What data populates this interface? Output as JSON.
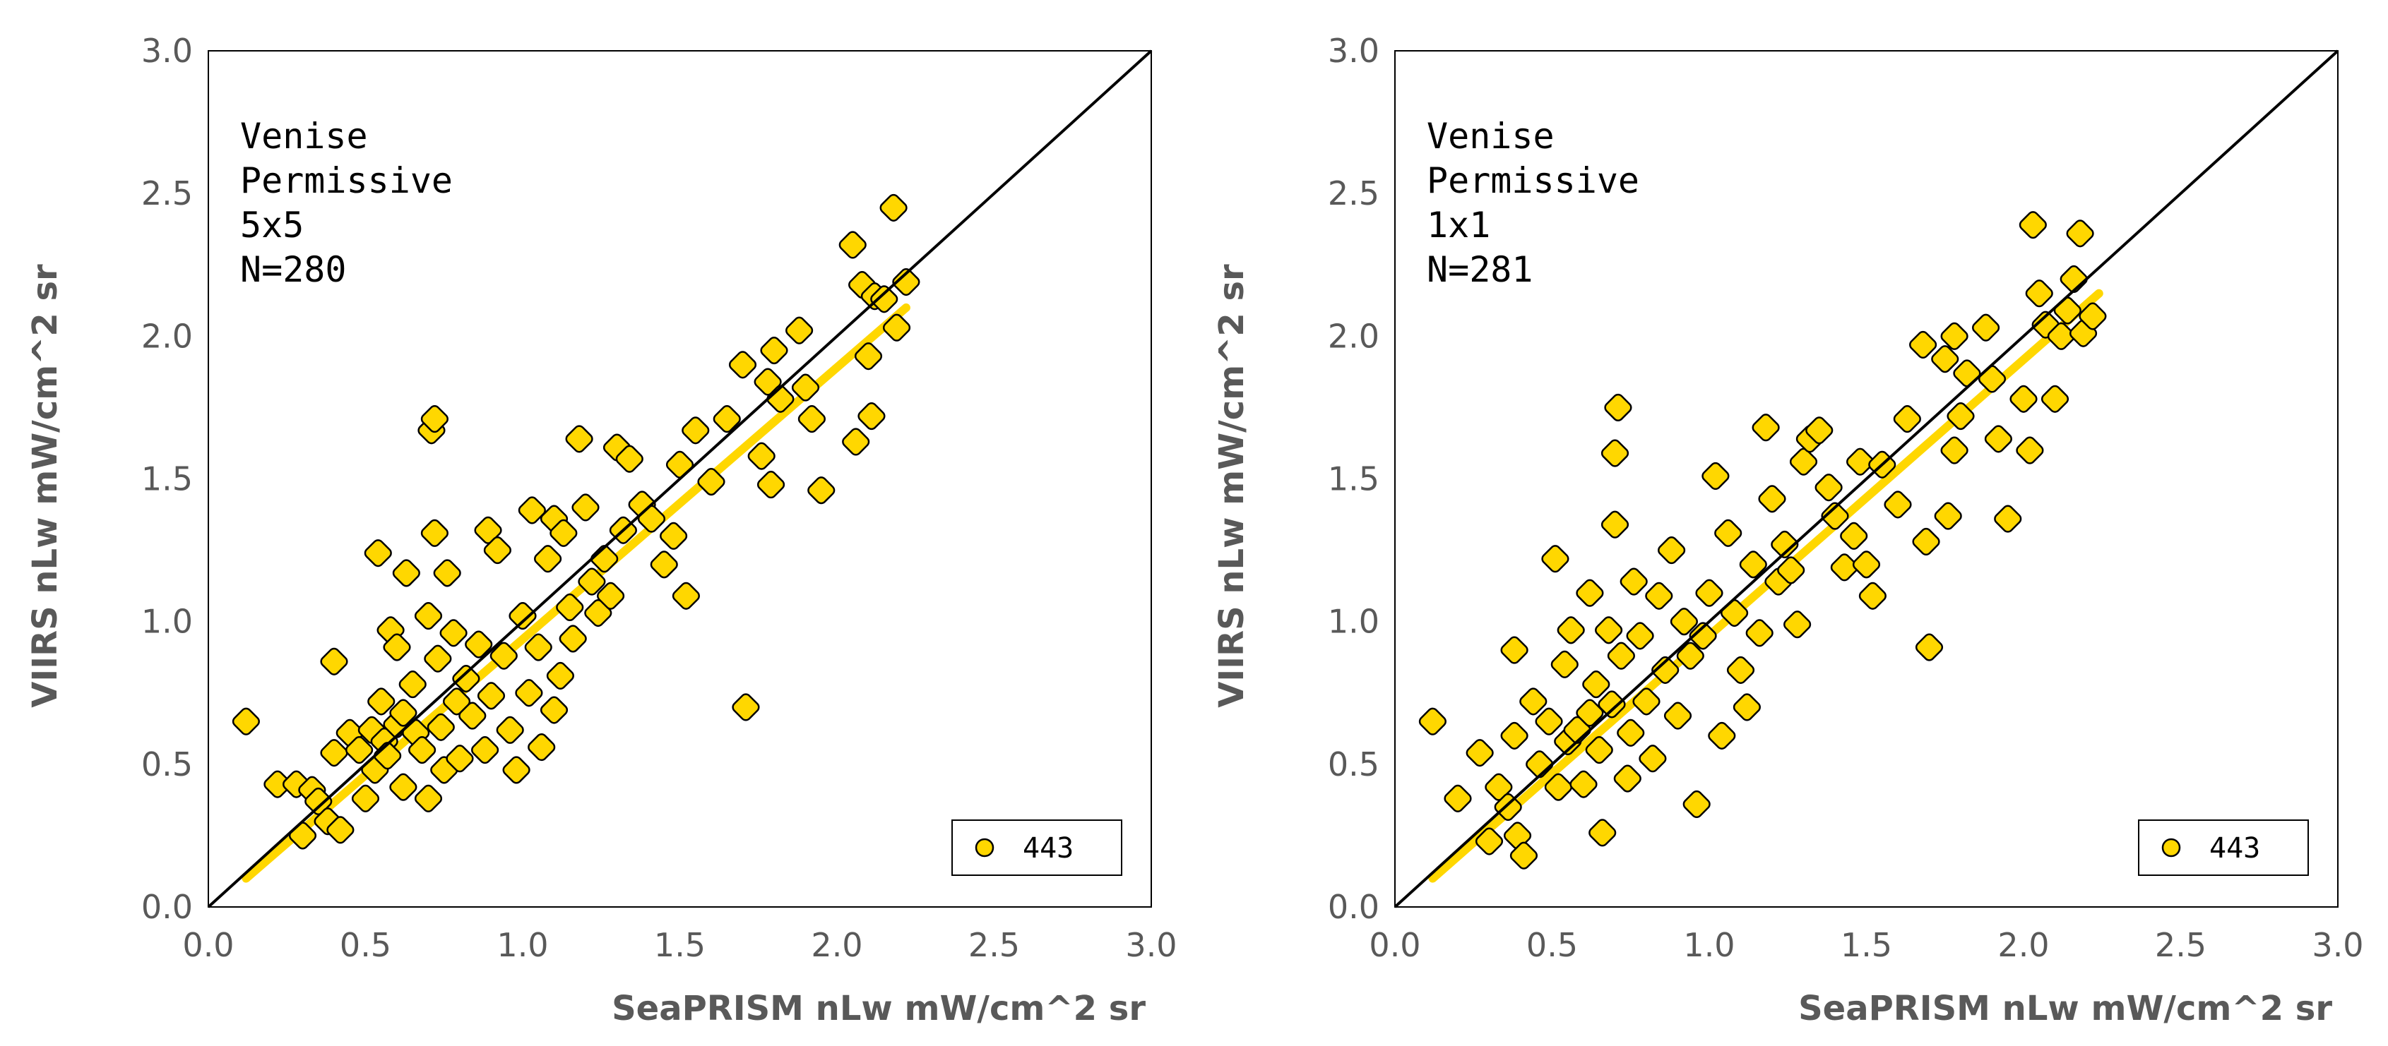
{
  "chart_data": [
    {
      "type": "scatter",
      "title": "",
      "xlabel": "SeaPRISM nLw mW/cm^2 sr",
      "ylabel": "VIIRS nLw mW/cm^2 sr",
      "xlim": [
        0,
        3
      ],
      "ylim": [
        0,
        3
      ],
      "x_ticks": [
        "0.0",
        "0.5",
        "1.0",
        "1.5",
        "2.0",
        "2.5",
        "3.0"
      ],
      "y_ticks": [
        "0.0",
        "0.5",
        "1.0",
        "1.5",
        "2.0",
        "2.5",
        "3.0"
      ],
      "grid": false,
      "legend_position": "bottom-right",
      "annotation": [
        "Venise",
        "Permissive",
        "5x5",
        "N=280"
      ],
      "reference_line": {
        "name": "1:1",
        "x": [
          0,
          3
        ],
        "y": [
          0,
          3
        ],
        "color": "#000000"
      },
      "fit_line": {
        "x": [
          0.12,
          2.22
        ],
        "y": [
          0.1,
          2.1
        ],
        "color": "#ffd700"
      },
      "series": [
        {
          "name": "443",
          "marker_fill": "#ffd700",
          "marker_stroke": "#000000",
          "points": [
            [
              0.12,
              0.65
            ],
            [
              0.22,
              0.43
            ],
            [
              0.28,
              0.43
            ],
            [
              0.33,
              0.41
            ],
            [
              0.3,
              0.25
            ],
            [
              0.35,
              0.37
            ],
            [
              0.38,
              0.3
            ],
            [
              0.4,
              0.86
            ],
            [
              0.4,
              0.54
            ],
            [
              0.42,
              0.27
            ],
            [
              0.45,
              0.61
            ],
            [
              0.48,
              0.55
            ],
            [
              0.5,
              0.38
            ],
            [
              0.52,
              0.62
            ],
            [
              0.53,
              0.48
            ],
            [
              0.54,
              1.24
            ],
            [
              0.55,
              0.72
            ],
            [
              0.56,
              0.58
            ],
            [
              0.57,
              0.53
            ],
            [
              0.58,
              0.97
            ],
            [
              0.6,
              0.91
            ],
            [
              0.6,
              0.64
            ],
            [
              0.62,
              0.68
            ],
            [
              0.62,
              0.42
            ],
            [
              0.63,
              1.17
            ],
            [
              0.65,
              0.78
            ],
            [
              0.66,
              0.61
            ],
            [
              0.68,
              0.55
            ],
            [
              0.7,
              1.02
            ],
            [
              0.7,
              0.38
            ],
            [
              0.71,
              1.67
            ],
            [
              0.72,
              1.71
            ],
            [
              0.72,
              1.31
            ],
            [
              0.73,
              0.87
            ],
            [
              0.74,
              0.63
            ],
            [
              0.75,
              0.48
            ],
            [
              0.76,
              1.17
            ],
            [
              0.78,
              0.96
            ],
            [
              0.79,
              0.72
            ],
            [
              0.8,
              0.52
            ],
            [
              0.82,
              0.8
            ],
            [
              0.84,
              0.67
            ],
            [
              0.86,
              0.92
            ],
            [
              0.88,
              0.55
            ],
            [
              0.89,
              1.32
            ],
            [
              0.9,
              0.74
            ],
            [
              0.92,
              1.25
            ],
            [
              0.94,
              0.88
            ],
            [
              0.96,
              0.62
            ],
            [
              0.98,
              0.48
            ],
            [
              1.0,
              1.02
            ],
            [
              1.02,
              0.75
            ],
            [
              1.03,
              1.39
            ],
            [
              1.05,
              0.91
            ],
            [
              1.06,
              0.56
            ],
            [
              1.08,
              1.22
            ],
            [
              1.1,
              1.36
            ],
            [
              1.1,
              0.69
            ],
            [
              1.12,
              0.81
            ],
            [
              1.13,
              1.31
            ],
            [
              1.15,
              1.05
            ],
            [
              1.16,
              0.94
            ],
            [
              1.18,
              1.64
            ],
            [
              1.2,
              1.4
            ],
            [
              1.22,
              1.14
            ],
            [
              1.24,
              1.03
            ],
            [
              1.26,
              1.22
            ],
            [
              1.28,
              1.09
            ],
            [
              1.3,
              1.61
            ],
            [
              1.32,
              1.32
            ],
            [
              1.34,
              1.57
            ],
            [
              1.38,
              1.41
            ],
            [
              1.41,
              1.36
            ],
            [
              1.45,
              1.2
            ],
            [
              1.48,
              1.3
            ],
            [
              1.5,
              1.55
            ],
            [
              1.52,
              1.09
            ],
            [
              1.55,
              1.67
            ],
            [
              1.6,
              1.49
            ],
            [
              1.65,
              1.71
            ],
            [
              1.7,
              1.9
            ],
            [
              1.71,
              0.7
            ],
            [
              1.76,
              1.58
            ],
            [
              1.78,
              1.84
            ],
            [
              1.79,
              1.48
            ],
            [
              1.8,
              1.95
            ],
            [
              1.82,
              1.78
            ],
            [
              1.88,
              2.02
            ],
            [
              1.9,
              1.82
            ],
            [
              1.92,
              1.71
            ],
            [
              1.95,
              1.46
            ],
            [
              2.05,
              2.32
            ],
            [
              2.06,
              1.63
            ],
            [
              2.08,
              2.18
            ],
            [
              2.1,
              1.93
            ],
            [
              2.12,
              2.14
            ],
            [
              2.15,
              2.13
            ],
            [
              2.18,
              2.45
            ],
            [
              2.19,
              2.03
            ],
            [
              2.22,
              2.19
            ],
            [
              2.11,
              1.72
            ]
          ]
        }
      ]
    },
    {
      "type": "scatter",
      "title": "",
      "xlabel": "SeaPRISM nLw mW/cm^2 sr",
      "ylabel": "VIIRS nLw mW/cm^2 sr",
      "xlim": [
        0,
        3
      ],
      "ylim": [
        0,
        3
      ],
      "x_ticks": [
        "0.0",
        "0.5",
        "1.0",
        "1.5",
        "2.0",
        "2.5",
        "3.0"
      ],
      "y_ticks": [
        "0.0",
        "0.5",
        "1.0",
        "1.5",
        "2.0",
        "2.5",
        "3.0"
      ],
      "grid": false,
      "legend_position": "bottom-right",
      "annotation": [
        "Venise",
        "Permissive",
        "1x1",
        "N=281"
      ],
      "reference_line": {
        "name": "1:1",
        "x": [
          0,
          3
        ],
        "y": [
          0,
          3
        ],
        "color": "#000000"
      },
      "fit_line": {
        "x": [
          0.12,
          2.24
        ],
        "y": [
          0.1,
          2.15
        ],
        "color": "#ffd700"
      },
      "series": [
        {
          "name": "443",
          "marker_fill": "#ffd700",
          "marker_stroke": "#000000",
          "points": [
            [
              0.12,
              0.65
            ],
            [
              0.2,
              0.38
            ],
            [
              0.27,
              0.54
            ],
            [
              0.3,
              0.23
            ],
            [
              0.33,
              0.42
            ],
            [
              0.36,
              0.35
            ],
            [
              0.38,
              0.9
            ],
            [
              0.38,
              0.6
            ],
            [
              0.39,
              0.25
            ],
            [
              0.41,
              0.18
            ],
            [
              0.44,
              0.72
            ],
            [
              0.46,
              0.5
            ],
            [
              0.49,
              0.65
            ],
            [
              0.51,
              1.22
            ],
            [
              0.52,
              0.42
            ],
            [
              0.54,
              0.85
            ],
            [
              0.55,
              0.58
            ],
            [
              0.56,
              0.97
            ],
            [
              0.58,
              0.62
            ],
            [
              0.6,
              0.43
            ],
            [
              0.62,
              0.68
            ],
            [
              0.62,
              1.1
            ],
            [
              0.64,
              0.78
            ],
            [
              0.65,
              0.55
            ],
            [
              0.66,
              0.26
            ],
            [
              0.68,
              0.97
            ],
            [
              0.69,
              0.71
            ],
            [
              0.7,
              1.59
            ],
            [
              0.7,
              1.34
            ],
            [
              0.71,
              1.75
            ],
            [
              0.72,
              0.88
            ],
            [
              0.74,
              0.45
            ],
            [
              0.75,
              0.61
            ],
            [
              0.76,
              1.14
            ],
            [
              0.78,
              0.95
            ],
            [
              0.8,
              0.72
            ],
            [
              0.82,
              0.52
            ],
            [
              0.84,
              1.09
            ],
            [
              0.86,
              0.83
            ],
            [
              0.88,
              1.25
            ],
            [
              0.9,
              0.67
            ],
            [
              0.92,
              1.0
            ],
            [
              0.94,
              0.88
            ],
            [
              0.96,
              0.36
            ],
            [
              0.98,
              0.95
            ],
            [
              1.0,
              1.1
            ],
            [
              1.02,
              1.51
            ],
            [
              1.04,
              0.6
            ],
            [
              1.06,
              1.31
            ],
            [
              1.08,
              1.03
            ],
            [
              1.1,
              0.83
            ],
            [
              1.12,
              0.7
            ],
            [
              1.14,
              1.2
            ],
            [
              1.16,
              0.96
            ],
            [
              1.18,
              1.68
            ],
            [
              1.2,
              1.43
            ],
            [
              1.22,
              1.14
            ],
            [
              1.24,
              1.27
            ],
            [
              1.26,
              1.18
            ],
            [
              1.28,
              0.99
            ],
            [
              1.3,
              1.56
            ],
            [
              1.32,
              1.64
            ],
            [
              1.35,
              1.67
            ],
            [
              1.38,
              1.47
            ],
            [
              1.4,
              1.37
            ],
            [
              1.43,
              1.19
            ],
            [
              1.46,
              1.3
            ],
            [
              1.48,
              1.56
            ],
            [
              1.5,
              1.2
            ],
            [
              1.52,
              1.09
            ],
            [
              1.55,
              1.55
            ],
            [
              1.6,
              1.41
            ],
            [
              1.63,
              1.71
            ],
            [
              1.68,
              1.97
            ],
            [
              1.69,
              1.28
            ],
            [
              1.7,
              0.91
            ],
            [
              1.75,
              1.92
            ],
            [
              1.76,
              1.37
            ],
            [
              1.78,
              2.0
            ],
            [
              1.78,
              1.6
            ],
            [
              1.8,
              1.72
            ],
            [
              1.82,
              1.87
            ],
            [
              1.88,
              2.03
            ],
            [
              1.9,
              1.85
            ],
            [
              1.92,
              1.64
            ],
            [
              1.95,
              1.36
            ],
            [
              2.0,
              1.78
            ],
            [
              2.02,
              1.6
            ],
            [
              2.03,
              2.39
            ],
            [
              2.05,
              2.15
            ],
            [
              2.07,
              2.04
            ],
            [
              2.1,
              1.78
            ],
            [
              2.12,
              2.0
            ],
            [
              2.14,
              2.09
            ],
            [
              2.16,
              2.2
            ],
            [
              2.18,
              2.36
            ],
            [
              2.19,
              2.01
            ],
            [
              2.22,
              2.07
            ]
          ]
        }
      ]
    }
  ]
}
